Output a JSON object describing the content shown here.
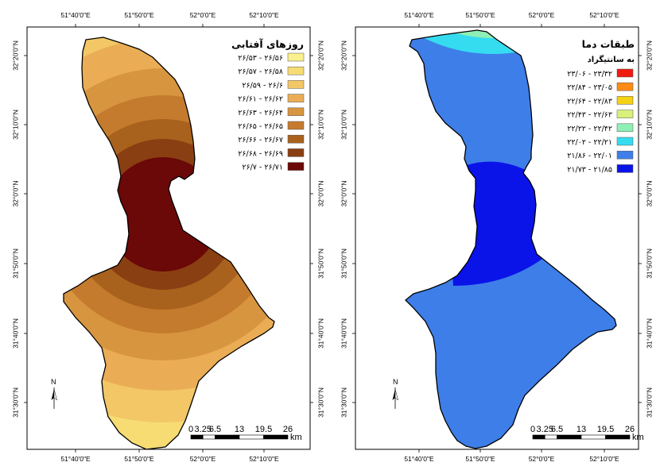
{
  "axes": {
    "lon_labels": [
      "51°40'0\"E",
      "51°50'0\"E",
      "52°0'0\"E",
      "52°10'0\"E"
    ],
    "lat_labels": [
      "32°20'0\"N",
      "32°10'0\"N",
      "32°0'0\"N",
      "31°50'0\"N",
      "31°40'0\"N",
      "31°30'0\"N"
    ]
  },
  "left_map": {
    "legend_title": "روزهای آفتابی",
    "legend_subtitle": "",
    "classes": [
      {
        "label": "۲۶/۵۳ - ۲۶/۵۶",
        "color": "#fbf08f"
      },
      {
        "label": "۲۶/۵۷ - ۲۶/۵۸",
        "color": "#f7dc74"
      },
      {
        "label": "۲۶/۵۹ - ۲۶/۶",
        "color": "#f3c766"
      },
      {
        "label": "۲۶/۶۱ - ۲۶/۶۲",
        "color": "#eaad56"
      },
      {
        "label": "۲۶/۶۳ - ۲۶/۶۴",
        "color": "#d8953f"
      },
      {
        "label": "۲۶/۶۵ - ۲۶/۶۵",
        "color": "#c57b2e"
      },
      {
        "label": "۲۶/۶۶ - ۲۶/۶۷",
        "color": "#a9621d"
      },
      {
        "label": "۲۶/۶۸ - ۲۶/۶۹",
        "color": "#8a3f12"
      },
      {
        "label": "۲۶/۷ - ۲۶/۷۱",
        "color": "#6b0808"
      }
    ]
  },
  "right_map": {
    "legend_title": "طبقات دما",
    "legend_subtitle": "به سانتیگراد",
    "classes": [
      {
        "label": "۲۳/۰۶ - ۲۳/۳۲",
        "color": "#f01a10"
      },
      {
        "label": "۲۲/۸۴ - ۲۳/۰۵",
        "color": "#ff8a14"
      },
      {
        "label": "۲۲/۶۴ - ۲۲/۸۳",
        "color": "#f5d214"
      },
      {
        "label": "۲۲/۴۳ - ۲۲/۶۳",
        "color": "#d9f07a"
      },
      {
        "label": "۲۲/۲۲ - ۲۲/۴۲",
        "color": "#8ef0b4"
      },
      {
        "label": "۲۲/۰۲ - ۲۲/۲۱",
        "color": "#35dcf0"
      },
      {
        "label": "۲۱/۸۶ - ۲۲/۰۱",
        "color": "#3e7ee8"
      },
      {
        "label": "۲۱/۷۳ - ۲۱/۸۵",
        "color": "#0a14e8"
      }
    ]
  },
  "scale_bar": {
    "labels": [
      "0",
      "3.25",
      "6.5",
      "13",
      "19.5",
      "26"
    ],
    "unit": "km"
  },
  "north_arrow": {
    "label": "N"
  }
}
